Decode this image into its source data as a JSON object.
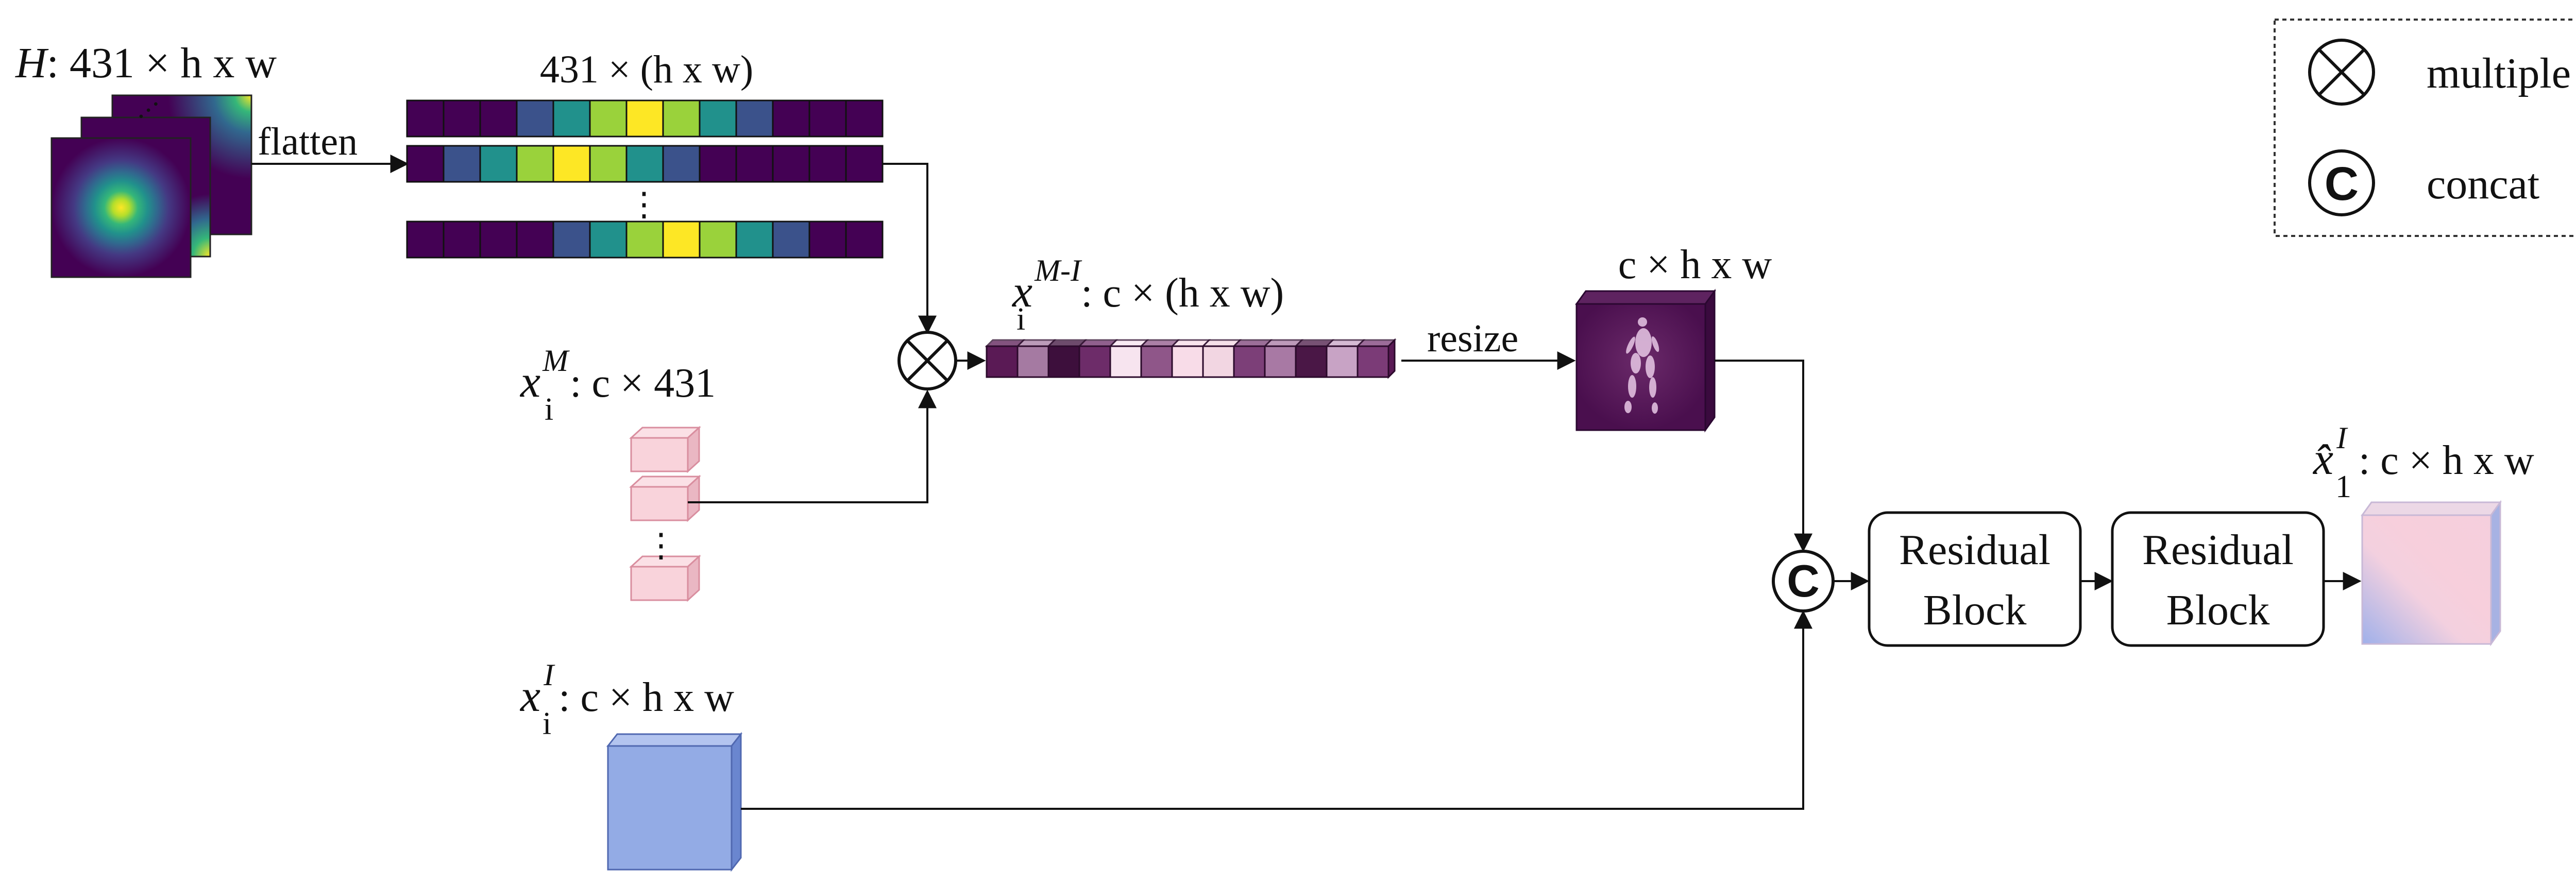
{
  "heatmaps": {
    "symbol": "H",
    "dims": ": 431 × h x w"
  },
  "flatten": {
    "label": "flatten",
    "dims": "431 × (h x w)",
    "rows": [
      [
        0,
        0,
        0,
        1,
        2,
        3,
        4,
        3,
        2,
        1,
        0,
        0,
        0
      ],
      [
        0,
        1,
        2,
        3,
        4,
        3,
        2,
        1,
        0,
        0,
        0,
        0,
        0
      ],
      [
        0,
        0,
        0,
        0,
        1,
        2,
        3,
        4,
        3,
        2,
        1,
        0,
        0
      ]
    ],
    "ellipsis": "⋮"
  },
  "viridis": [
    "#440154",
    "#3b528b",
    "#21918c",
    "#9ad23b",
    "#fde725"
  ],
  "multiple_op": {
    "symbol": "⊗"
  },
  "xM": {
    "base": "x",
    "sub": "i",
    "sup": "M",
    "dims": ": c × 431",
    "ellipsis": "⋮"
  },
  "xMI": {
    "base": "x",
    "sub": "i",
    "sup": "M-I",
    "dims": ": c × (h x w)",
    "colors": [
      "#5a1a55",
      "#a57aa2",
      "#3d0f3c",
      "#6d2c69",
      "#f7e4ef",
      "#8f5689",
      "#f8dce8",
      "#f2d6e2",
      "#7c3f78",
      "#a879a4",
      "#4a1746",
      "#c8a3c5",
      "#7b3b77"
    ]
  },
  "resize": {
    "label": "resize"
  },
  "resized": {
    "dims": "c × h x w"
  },
  "xI": {
    "base": "x",
    "sub": "i",
    "sup": "I",
    "dims": ": c × h x w"
  },
  "concat_op": {
    "symbol": "C"
  },
  "blocks": [
    {
      "line1": "Residual",
      "line2": "Block"
    },
    {
      "line1": "Residual",
      "line2": "Block"
    }
  ],
  "output": {
    "base": "x̂",
    "sub": "1",
    "sup": "I",
    "dims": ": c × h x w"
  },
  "legend": {
    "items": [
      {
        "symbol": "⊗",
        "label": "multiple"
      },
      {
        "symbol": "C",
        "label": "concat"
      }
    ]
  }
}
